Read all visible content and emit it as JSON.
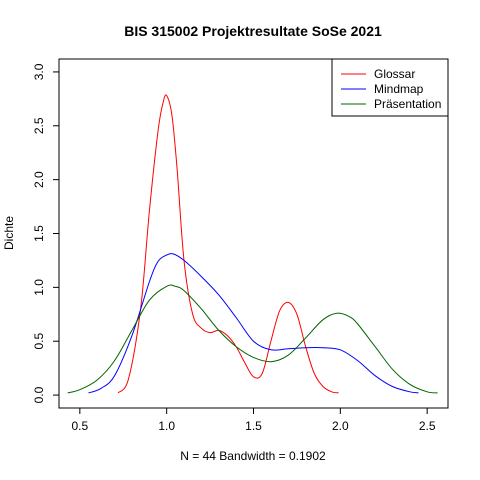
{
  "chart_data": {
    "type": "line",
    "title": "BIS 315002 Projektresultate SoSe 2021",
    "xlabel": "N = 44   Bandwidth = 0.1902",
    "ylabel": "Dichte",
    "xlim": [
      0.38,
      2.62
    ],
    "ylim": [
      -0.12,
      3.12
    ],
    "x_ticks": [
      0.5,
      1.0,
      1.5,
      2.0,
      2.5
    ],
    "x_tick_labels": [
      "0.5",
      "1.0",
      "1.5",
      "2.0",
      "2.5"
    ],
    "y_ticks": [
      0.0,
      0.5,
      1.0,
      1.5,
      2.0,
      2.5,
      3.0
    ],
    "y_tick_labels": [
      "0.0",
      "0.5",
      "1.0",
      "1.5",
      "2.0",
      "2.5",
      "3.0"
    ],
    "grid": false,
    "legend_position": "top-right",
    "series": [
      {
        "name": "Glossar",
        "color": "#ff0000",
        "x": [
          0.72,
          0.78,
          0.85,
          0.9,
          0.95,
          0.98,
          1.0,
          1.03,
          1.06,
          1.1,
          1.15,
          1.2,
          1.25,
          1.3,
          1.35,
          1.4,
          1.45,
          1.5,
          1.55,
          1.6,
          1.65,
          1.7,
          1.75,
          1.8,
          1.85,
          1.9,
          1.95,
          1.99
        ],
        "y": [
          0.02,
          0.15,
          0.8,
          1.7,
          2.45,
          2.72,
          2.78,
          2.6,
          2.1,
          1.25,
          0.75,
          0.62,
          0.58,
          0.6,
          0.55,
          0.45,
          0.3,
          0.17,
          0.2,
          0.5,
          0.78,
          0.86,
          0.75,
          0.45,
          0.2,
          0.08,
          0.03,
          0.02
        ]
      },
      {
        "name": "Mindmap",
        "color": "#0000ff",
        "x": [
          0.55,
          0.62,
          0.7,
          0.8,
          0.9,
          0.95,
          1.0,
          1.04,
          1.1,
          1.2,
          1.3,
          1.4,
          1.5,
          1.6,
          1.7,
          1.8,
          1.9,
          2.0,
          2.1,
          2.2,
          2.3,
          2.4,
          2.45
        ],
        "y": [
          0.02,
          0.06,
          0.18,
          0.55,
          1.05,
          1.24,
          1.3,
          1.31,
          1.25,
          1.1,
          0.93,
          0.72,
          0.5,
          0.42,
          0.43,
          0.44,
          0.44,
          0.42,
          0.32,
          0.18,
          0.08,
          0.03,
          0.02
        ]
      },
      {
        "name": "Präsentation",
        "color": "#006400",
        "x": [
          0.43,
          0.5,
          0.6,
          0.7,
          0.8,
          0.9,
          1.0,
          1.05,
          1.1,
          1.2,
          1.3,
          1.4,
          1.5,
          1.6,
          1.7,
          1.8,
          1.9,
          1.98,
          2.05,
          2.1,
          2.2,
          2.3,
          2.4,
          2.5,
          2.56
        ],
        "y": [
          0.02,
          0.05,
          0.14,
          0.32,
          0.6,
          0.88,
          1.01,
          1.01,
          0.97,
          0.8,
          0.6,
          0.45,
          0.35,
          0.31,
          0.37,
          0.53,
          0.7,
          0.76,
          0.73,
          0.66,
          0.45,
          0.24,
          0.1,
          0.03,
          0.02
        ]
      }
    ]
  }
}
